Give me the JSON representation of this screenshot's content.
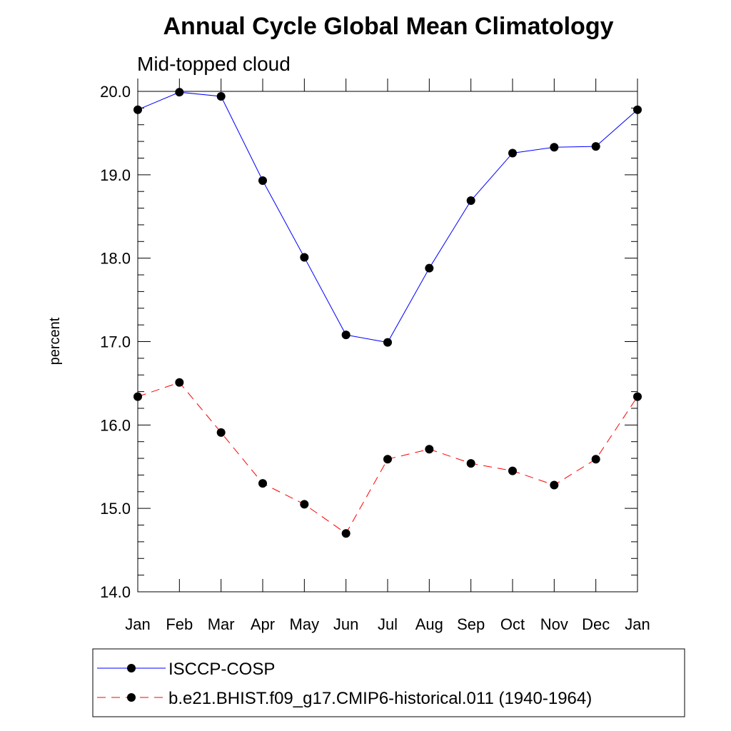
{
  "chart_data": {
    "type": "line",
    "title": "Annual Cycle Global Mean Climatology",
    "subtitle": "Mid-topped cloud",
    "xlabel": "",
    "ylabel": "percent",
    "categories": [
      "Jan",
      "Feb",
      "Mar",
      "Apr",
      "May",
      "Jun",
      "Jul",
      "Aug",
      "Sep",
      "Oct",
      "Nov",
      "Dec",
      "Jan"
    ],
    "ylim": [
      14.0,
      20.0
    ],
    "y_ticks": [
      "14.0",
      "15.0",
      "16.0",
      "17.0",
      "18.0",
      "19.0",
      "20.0"
    ],
    "grid": false,
    "legend_position": "bottom",
    "series": [
      {
        "name": "ISCCP-COSP",
        "color": "#0000ff",
        "line_style": "solid",
        "marker": "filled-circle",
        "values": [
          19.78,
          19.99,
          19.94,
          18.93,
          18.01,
          17.08,
          16.99,
          17.88,
          18.69,
          19.26,
          19.33,
          19.34,
          19.78
        ]
      },
      {
        "name": "b.e21.BHIST.f09_g17.CMIP6-historical.011 (1940-1964)",
        "color": "#ff0000",
        "line_style": "dashed",
        "marker": "filled-circle",
        "values": [
          16.34,
          16.51,
          15.91,
          15.3,
          15.05,
          14.7,
          15.59,
          15.71,
          15.54,
          15.45,
          15.28,
          15.59,
          16.34
        ]
      }
    ]
  }
}
